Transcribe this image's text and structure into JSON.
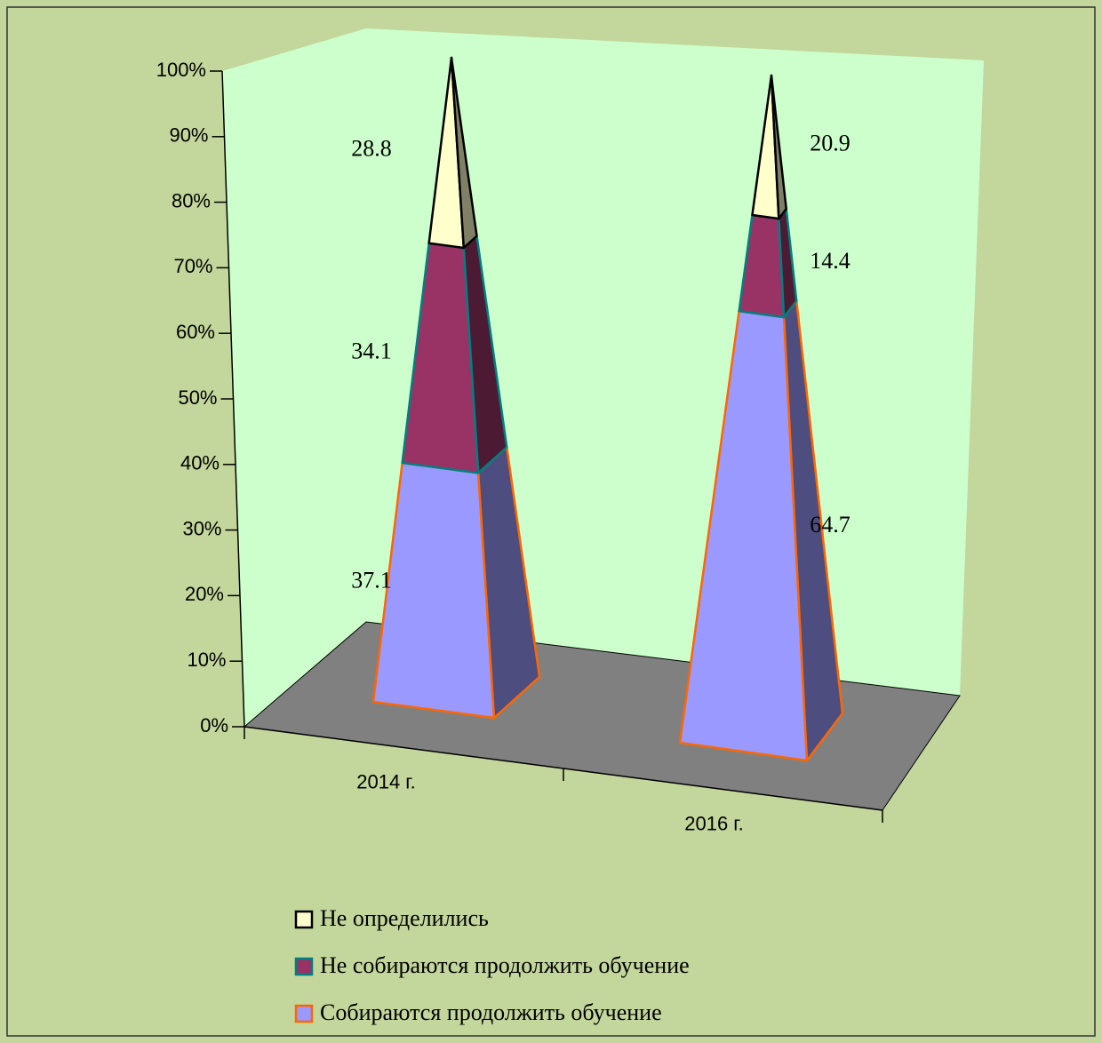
{
  "chart_data": {
    "type": "pyramid_stacked_100",
    "categories": [
      "2014 г.",
      "2016 г."
    ],
    "series": [
      {
        "name": "Собираются продолжить обучение",
        "color": "#9999ff",
        "edge_color": "#ff6600",
        "values": [
          37.1,
          64.7
        ]
      },
      {
        "name": "Не собираются продолжить обучение",
        "color": "#993366",
        "edge_color": "#008080",
        "values": [
          34.1,
          14.4
        ]
      },
      {
        "name": "Не определились",
        "color": "#ffffcc",
        "edge_color": "#000000",
        "values": [
          28.8,
          20.9
        ]
      }
    ],
    "ylim": [
      0,
      100
    ],
    "yticks": [
      {
        "value": 0,
        "label": "0%"
      },
      {
        "value": 10,
        "label": "10%"
      },
      {
        "value": 20,
        "label": "20%"
      },
      {
        "value": 30,
        "label": "30%"
      },
      {
        "value": 40,
        "label": "40%"
      },
      {
        "value": 50,
        "label": "50%"
      },
      {
        "value": 60,
        "label": "60%"
      },
      {
        "value": 70,
        "label": "70%"
      },
      {
        "value": 80,
        "label": "80%"
      },
      {
        "value": 90,
        "label": "90%"
      },
      {
        "value": 100,
        "label": "100%"
      }
    ],
    "legend": "bottom"
  }
}
